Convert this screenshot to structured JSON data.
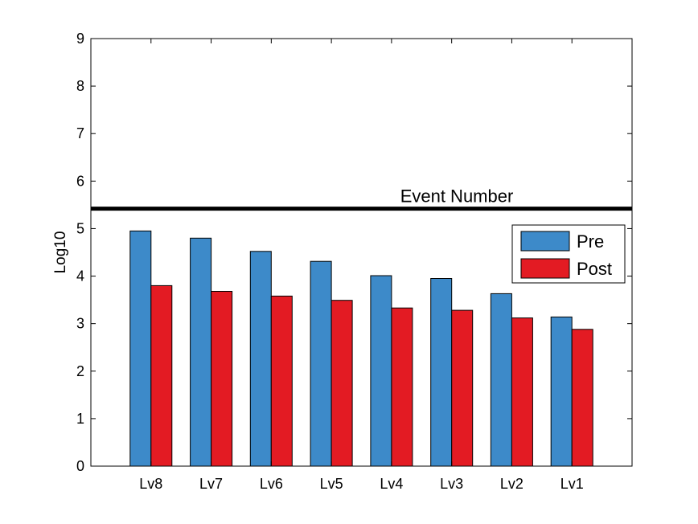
{
  "chart_data": {
    "type": "bar",
    "title": "",
    "xlabel": "",
    "ylabel": "Log10",
    "ylim": [
      0,
      9
    ],
    "yticks": [
      "0",
      "1",
      "2",
      "3",
      "4",
      "5",
      "6",
      "7",
      "8",
      "9"
    ],
    "categories": [
      "Lv8",
      "Lv7",
      "Lv6",
      "Lv5",
      "Lv4",
      "Lv3",
      "Lv2",
      "Lv1"
    ],
    "series": [
      {
        "name": "Pre",
        "color": "#3d8ac9",
        "values": [
          4.95,
          4.8,
          4.52,
          4.31,
          4.01,
          3.95,
          3.63,
          3.14
        ]
      },
      {
        "name": "Post",
        "color": "#e31b23",
        "values": [
          3.8,
          3.68,
          3.58,
          3.49,
          3.33,
          3.28,
          3.12,
          2.88
        ]
      }
    ],
    "reference_line": {
      "value": 5.42,
      "label": "Event Number",
      "color": "#000000"
    },
    "legend_position": "top-right",
    "grid": false
  }
}
